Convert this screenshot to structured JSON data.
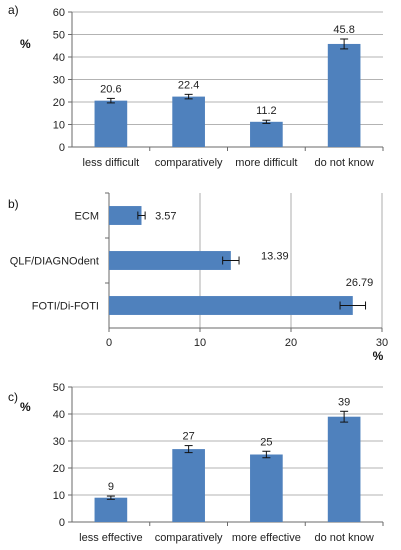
{
  "colors": {
    "bar": "#4f81bd",
    "error_bar": "#111111",
    "grid": "#9a9a9a"
  },
  "chart_data": [
    {
      "type": "bar",
      "panel_label": "a)",
      "ylabel": "%",
      "ylim": [
        0,
        60
      ],
      "yticks": [
        0,
        10,
        20,
        30,
        40,
        50,
        60
      ],
      "categories": [
        "less difficult",
        "comparatively",
        "more difficult",
        "do not know"
      ],
      "values": [
        20.6,
        22.4,
        11.2,
        45.8
      ],
      "errors": [
        1.0,
        1.0,
        0.7,
        2.2
      ],
      "value_labels": [
        "20.6",
        "22.4",
        "11.2",
        "45.8"
      ],
      "grid": true,
      "orientation": "vertical"
    },
    {
      "type": "bar",
      "panel_label": "b)",
      "xlabel": "%",
      "xlim": [
        0,
        30
      ],
      "xticks": [
        0,
        10,
        20,
        30
      ],
      "categories": [
        "ECM",
        "QLF/DIAGNOdent",
        "FOTI/Di-FOTI"
      ],
      "values": [
        3.57,
        13.39,
        26.79
      ],
      "errors": [
        0.4,
        0.9,
        1.4
      ],
      "value_labels": [
        "3.57",
        "13.39",
        "26.79"
      ],
      "grid": true,
      "orientation": "horizontal"
    },
    {
      "type": "bar",
      "panel_label": "c)",
      "ylabel": "%",
      "ylim": [
        0,
        50
      ],
      "yticks": [
        0,
        10,
        20,
        30,
        40,
        50
      ],
      "categories": [
        "less effective",
        "comparatively",
        "more effective",
        "do not know"
      ],
      "values": [
        9,
        27,
        25,
        39
      ],
      "errors": [
        0.6,
        1.3,
        1.2,
        2.0
      ],
      "value_labels": [
        "9",
        "27",
        "25",
        "39"
      ],
      "grid": true,
      "orientation": "vertical"
    }
  ]
}
